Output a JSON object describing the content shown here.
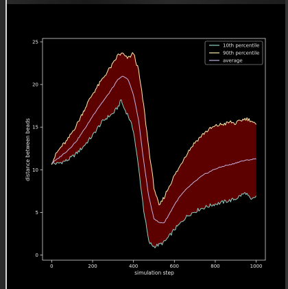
{
  "colors": {
    "background": "#000000",
    "band_fill": "#5c0000",
    "p10_line": "#8fd1c6",
    "p90_line": "#ffedad",
    "avg_line": "#c4b3e0",
    "axis": "#d9d9d9",
    "text": "#e6e6e6"
  },
  "chart_data": {
    "type": "line",
    "title": "",
    "xlabel": "simulation step",
    "ylabel": "distance between beads",
    "xlim": [
      -45,
      1045
    ],
    "ylim": [
      -0.6,
      25.4
    ],
    "xticks": [
      0,
      200,
      400,
      600,
      800,
      1000
    ],
    "yticks": [
      0,
      5,
      10,
      15,
      20,
      25
    ],
    "grid": false,
    "legend_position": "top-right",
    "fill_between": {
      "lower": "10th percentile",
      "upper": "90th percentile"
    },
    "series": [
      {
        "name": "10th percentile",
        "color": "#8fd1c6",
        "x": [
          0,
          25,
          50,
          75,
          100,
          125,
          150,
          175,
          200,
          225,
          250,
          275,
          300,
          325,
          340,
          350,
          375,
          400,
          425,
          450,
          475,
          500,
          525,
          550,
          575,
          600,
          625,
          650,
          675,
          700,
          725,
          750,
          775,
          800,
          825,
          850,
          875,
          900,
          925,
          950,
          975,
          1000
        ],
        "y": [
          10.8,
          10.7,
          10.9,
          11.1,
          11.5,
          12.0,
          12.6,
          13.3,
          14.0,
          14.9,
          15.7,
          16.2,
          16.6,
          17.4,
          18.2,
          17.4,
          16.3,
          14.6,
          10.2,
          5.3,
          1.5,
          1.0,
          1.2,
          1.5,
          2.2,
          3.0,
          3.6,
          4.3,
          4.8,
          5.1,
          5.4,
          5.6,
          5.8,
          6.0,
          6.1,
          6.3,
          6.4,
          6.6,
          7.0,
          7.3,
          6.4,
          6.9
        ]
      },
      {
        "name": "90th percentile",
        "color": "#ffedad",
        "x": [
          0,
          25,
          50,
          75,
          100,
          125,
          150,
          175,
          200,
          225,
          250,
          275,
          300,
          325,
          350,
          360,
          375,
          400,
          425,
          450,
          475,
          500,
          525,
          550,
          575,
          600,
          625,
          650,
          675,
          700,
          725,
          750,
          775,
          800,
          825,
          850,
          875,
          900,
          925,
          950,
          975,
          1000
        ],
        "y": [
          10.8,
          12.0,
          12.8,
          13.4,
          14.4,
          15.4,
          16.6,
          17.8,
          18.9,
          19.8,
          20.7,
          21.6,
          22.4,
          23.5,
          23.6,
          23.2,
          23.1,
          23.7,
          21.6,
          17.5,
          12.5,
          8.0,
          5.7,
          6.8,
          8.1,
          9.3,
          10.3,
          11.5,
          12.4,
          13.2,
          13.8,
          14.4,
          14.8,
          15.1,
          15.3,
          15.4,
          15.6,
          15.4,
          15.8,
          16.0,
          15.8,
          15.2
        ]
      },
      {
        "name": "average",
        "color": "#c4b3e0",
        "x": [
          0,
          25,
          50,
          75,
          100,
          125,
          150,
          175,
          200,
          225,
          250,
          275,
          300,
          325,
          350,
          375,
          400,
          425,
          450,
          475,
          500,
          525,
          550,
          575,
          600,
          625,
          650,
          675,
          700,
          725,
          750,
          775,
          800,
          825,
          850,
          875,
          900,
          925,
          950,
          975,
          1000
        ],
        "y": [
          10.8,
          11.2,
          11.7,
          12.2,
          12.8,
          13.5,
          14.4,
          15.3,
          16.3,
          17.2,
          18.0,
          18.8,
          19.7,
          20.6,
          21.0,
          20.5,
          18.8,
          15.8,
          11.0,
          6.8,
          4.3,
          3.8,
          3.8,
          4.8,
          5.9,
          6.8,
          7.5,
          8.1,
          8.6,
          9.1,
          9.5,
          9.8,
          10.1,
          10.3,
          10.5,
          10.6,
          10.8,
          11.0,
          11.1,
          11.2,
          11.3
        ]
      }
    ]
  }
}
